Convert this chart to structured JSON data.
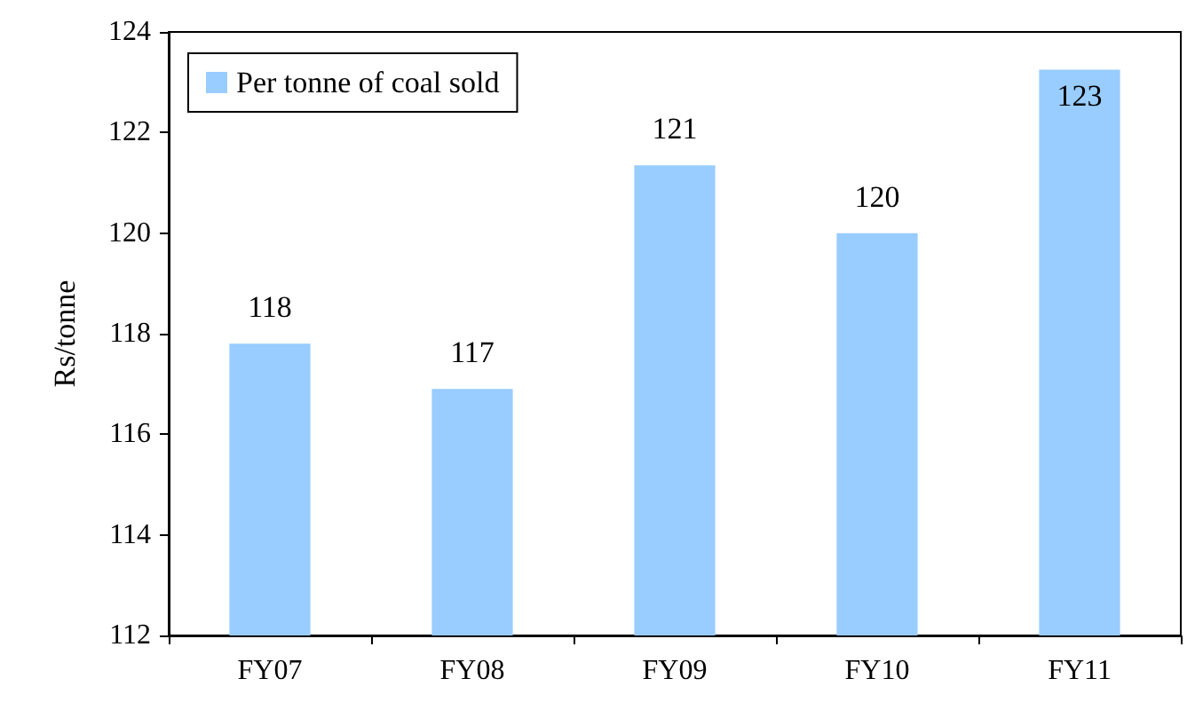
{
  "chart_data": {
    "type": "bar",
    "ylabel": "Rs/tonne",
    "categories": [
      "FY07",
      "FY08",
      "FY09",
      "FY10",
      "FY11"
    ],
    "series": [
      {
        "name": "Per tonne of coal sold",
        "color": "#99ccff",
        "values": [
          117.8,
          116.9,
          121.35,
          120.0,
          123.25
        ],
        "value_labels": [
          "118",
          "117",
          "121",
          "120",
          "123"
        ]
      }
    ],
    "ylim": [
      112,
      124
    ],
    "yticks": [
      112,
      114,
      116,
      118,
      120,
      122,
      124
    ],
    "grid": false,
    "legend": "top left"
  }
}
